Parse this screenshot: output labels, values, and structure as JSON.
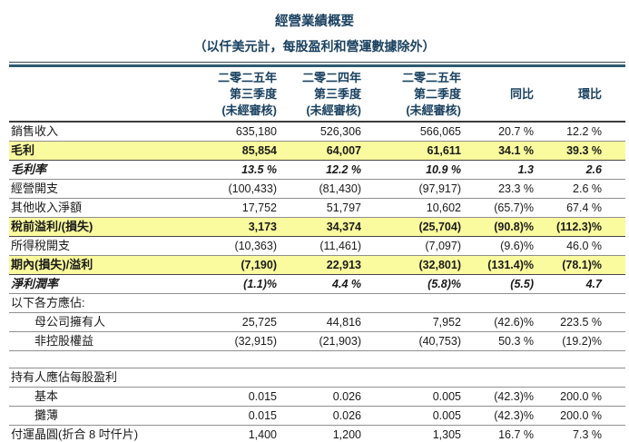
{
  "title": "經營業績概要",
  "subtitle": "（以仟美元計，每股盈利和營運數據除外）",
  "colors": {
    "header_text": "#1a4160",
    "highlight_row": "#fafa9e",
    "row_border": "#8f8f8f",
    "top_rule": "#2e5a70"
  },
  "columns": [
    {
      "lines": [
        "二零二五年",
        "第三季度",
        "(未經審核)"
      ]
    },
    {
      "lines": [
        "二零二四年",
        "第三季度",
        "(未經審核)"
      ]
    },
    {
      "lines": [
        "二零二五年",
        "第二季度",
        "(未經審核)"
      ]
    },
    {
      "lines": [
        "",
        "同比",
        ""
      ]
    },
    {
      "lines": [
        "",
        "環比",
        ""
      ]
    }
  ],
  "rows": [
    {
      "label": "銷售收入",
      "values": [
        "635,180",
        "526,306",
        "566,065",
        "20.7 %",
        "12.2 %"
      ],
      "style": "normal"
    },
    {
      "label": "毛利",
      "values": [
        "85,854",
        "64,007",
        "61,611",
        "34.1 %",
        "39.3 %"
      ],
      "style": "highlight"
    },
    {
      "label": "毛利率",
      "values": [
        "13.5 %",
        "12.2 %",
        "10.9 %",
        "1.3",
        "2.6"
      ],
      "style": "bold-italic"
    },
    {
      "label": "經營開支",
      "values": [
        "(100,433)",
        "(81,430)",
        "(97,917)",
        "23.3 %",
        "2.6 %"
      ],
      "style": "normal"
    },
    {
      "label": "其他收入淨額",
      "values": [
        "17,752",
        "51,797",
        "10,602",
        "(65.7)%",
        "67.4 %"
      ],
      "style": "normal"
    },
    {
      "label": "稅前溢利/(損失)",
      "values": [
        "3,173",
        "34,374",
        "(25,704)",
        "(90.8)%",
        "(112.3)%"
      ],
      "style": "highlight"
    },
    {
      "label": "所得稅開支",
      "values": [
        "(10,363)",
        "(11,461)",
        "(7,097)",
        "(9.6)%",
        "46.0 %"
      ],
      "style": "normal"
    },
    {
      "label": "期內(損失)/溢利",
      "values": [
        "(7,190)",
        "22,913",
        "(32,801)",
        "(131.4)%",
        "(78.1)%"
      ],
      "style": "highlight"
    },
    {
      "label": "淨利潤率",
      "values": [
        "(1.1)%",
        "4.4 %",
        "(5.8)%",
        "(5.5)",
        "4.7"
      ],
      "style": "bold-italic"
    },
    {
      "label": "以下各方應佔:",
      "values": [
        "",
        "",
        "",
        "",
        ""
      ],
      "style": "normal"
    },
    {
      "label": "母公司擁有人",
      "values": [
        "25,725",
        "44,816",
        "7,952",
        "(42.6)%",
        "223.5 %"
      ],
      "style": "indent"
    },
    {
      "label": "非控股權益",
      "values": [
        "(32,915)",
        "(21,903)",
        "(40,753)",
        "50.3 %",
        "(19.2)%"
      ],
      "style": "indent"
    },
    {
      "label": "",
      "values": [
        "",
        "",
        "",
        "",
        ""
      ],
      "style": "spacer"
    },
    {
      "label": "持有人應佔每股盈利",
      "values": [
        "",
        "",
        "",
        "",
        ""
      ],
      "style": "section-top"
    },
    {
      "label": "基本",
      "values": [
        "0.015",
        "0.026",
        "0.005",
        "(42.3)%",
        "200.0 %"
      ],
      "style": "indent"
    },
    {
      "label": "攤薄",
      "values": [
        "0.015",
        "0.026",
        "0.005",
        "(42.3)%",
        "200.0 %"
      ],
      "style": "indent"
    },
    {
      "label": "付運晶圓(折合 8 吋仟片)",
      "values": [
        "1,400",
        "1,200",
        "1,305",
        "16.7 %",
        "7.3 %"
      ],
      "style": "footer-row"
    }
  ]
}
